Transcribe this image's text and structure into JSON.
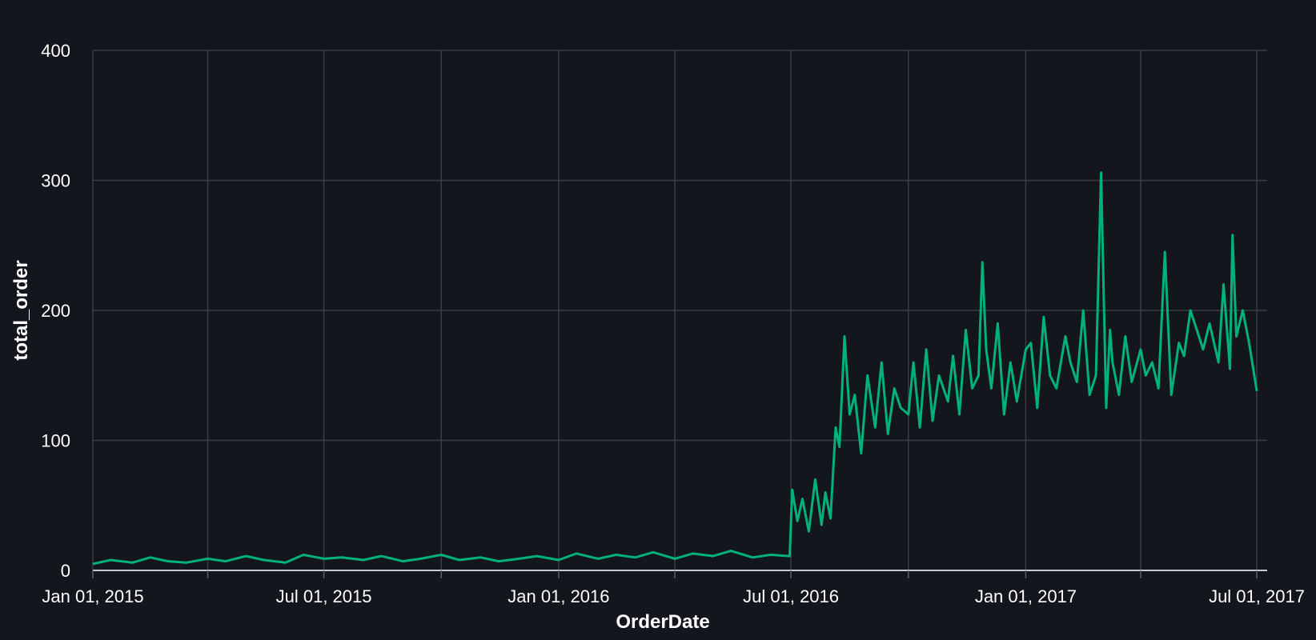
{
  "chart_data": {
    "type": "line",
    "xlabel": "OrderDate",
    "ylabel": "total_order",
    "ylim": [
      0,
      400
    ],
    "xlim": [
      "2015-01-01",
      "2017-07-01"
    ],
    "y_ticks": [
      0,
      100,
      200,
      300,
      400
    ],
    "x_ticks": [
      {
        "date": "2015-01-01",
        "label": "Jan 01, 2015"
      },
      {
        "date": "2015-04-01",
        "label": ""
      },
      {
        "date": "2015-07-01",
        "label": "Jul 01, 2015"
      },
      {
        "date": "2015-10-01",
        "label": ""
      },
      {
        "date": "2016-01-01",
        "label": "Jan 01, 2016"
      },
      {
        "date": "2016-04-01",
        "label": ""
      },
      {
        "date": "2016-07-01",
        "label": "Jul 01, 2016"
      },
      {
        "date": "2016-10-01",
        "label": ""
      },
      {
        "date": "2017-01-01",
        "label": "Jan 01, 2017"
      },
      {
        "date": "2017-04-01",
        "label": ""
      },
      {
        "date": "2017-07-01",
        "label": "Jul 01, 2017"
      }
    ],
    "grid": true,
    "colors": {
      "background": "#13161c",
      "line": "#00b27a",
      "grid": "#3a3d42"
    },
    "series": [
      {
        "x": [
          "2015-01-01",
          "2015-01-15",
          "2015-02-01",
          "2015-02-15",
          "2015-03-01",
          "2015-03-15",
          "2015-04-01",
          "2015-04-15",
          "2015-05-01",
          "2015-05-15",
          "2015-06-01",
          "2015-06-15",
          "2015-07-01",
          "2015-07-15",
          "2015-08-01",
          "2015-08-15",
          "2015-09-01",
          "2015-09-15",
          "2015-10-01",
          "2015-10-15",
          "2015-11-01",
          "2015-11-15",
          "2015-12-01",
          "2015-12-15",
          "2016-01-01",
          "2016-01-15",
          "2016-02-01",
          "2016-02-15",
          "2016-03-01",
          "2016-03-15",
          "2016-04-01",
          "2016-04-15",
          "2016-05-01",
          "2016-05-15",
          "2016-06-01",
          "2016-06-15",
          "2016-06-30",
          "2016-07-02",
          "2016-07-06",
          "2016-07-10",
          "2016-07-15",
          "2016-07-20",
          "2016-07-25",
          "2016-07-28",
          "2016-08-01",
          "2016-08-05",
          "2016-08-08",
          "2016-08-12",
          "2016-08-16",
          "2016-08-20",
          "2016-08-25",
          "2016-08-30",
          "2016-09-05",
          "2016-09-10",
          "2016-09-15",
          "2016-09-20",
          "2016-09-25",
          "2016-10-01",
          "2016-10-05",
          "2016-10-10",
          "2016-10-15",
          "2016-10-20",
          "2016-10-25",
          "2016-11-01",
          "2016-11-05",
          "2016-11-10",
          "2016-11-15",
          "2016-11-20",
          "2016-11-25",
          "2016-11-28",
          "2016-12-01",
          "2016-12-05",
          "2016-12-10",
          "2016-12-15",
          "2016-12-20",
          "2016-12-25",
          "2017-01-01",
          "2017-01-05",
          "2017-01-10",
          "2017-01-15",
          "2017-01-20",
          "2017-01-25",
          "2017-02-01",
          "2017-02-05",
          "2017-02-10",
          "2017-02-15",
          "2017-02-20",
          "2017-02-25",
          "2017-03-01",
          "2017-03-05",
          "2017-03-08",
          "2017-03-10",
          "2017-03-15",
          "2017-03-20",
          "2017-03-25",
          "2017-04-01",
          "2017-04-05",
          "2017-04-10",
          "2017-04-15",
          "2017-04-20",
          "2017-04-25",
          "2017-05-01",
          "2017-05-05",
          "2017-05-10",
          "2017-05-15",
          "2017-05-20",
          "2017-05-25",
          "2017-06-01",
          "2017-06-05",
          "2017-06-10",
          "2017-06-12",
          "2017-06-15",
          "2017-06-20",
          "2017-06-25",
          "2017-07-01"
        ],
        "values": [
          5,
          8,
          6,
          10,
          7,
          6,
          9,
          7,
          11,
          8,
          6,
          12,
          9,
          10,
          8,
          11,
          7,
          9,
          12,
          8,
          10,
          7,
          9,
          11,
          8,
          13,
          9,
          12,
          10,
          14,
          9,
          13,
          11,
          15,
          10,
          12,
          11,
          62,
          38,
          55,
          30,
          70,
          35,
          60,
          40,
          110,
          95,
          180,
          120,
          135,
          90,
          150,
          110,
          160,
          105,
          140,
          125,
          120,
          160,
          110,
          170,
          115,
          150,
          130,
          165,
          120,
          185,
          140,
          150,
          237,
          170,
          140,
          190,
          120,
          160,
          130,
          170,
          175,
          125,
          195,
          150,
          140,
          180,
          160,
          145,
          200,
          135,
          150,
          306,
          125,
          185,
          160,
          135,
          180,
          145,
          170,
          150,
          160,
          140,
          245,
          135,
          175,
          165,
          200,
          185,
          170,
          190,
          160,
          220,
          155,
          258,
          180,
          200,
          175,
          138
        ]
      }
    ]
  }
}
